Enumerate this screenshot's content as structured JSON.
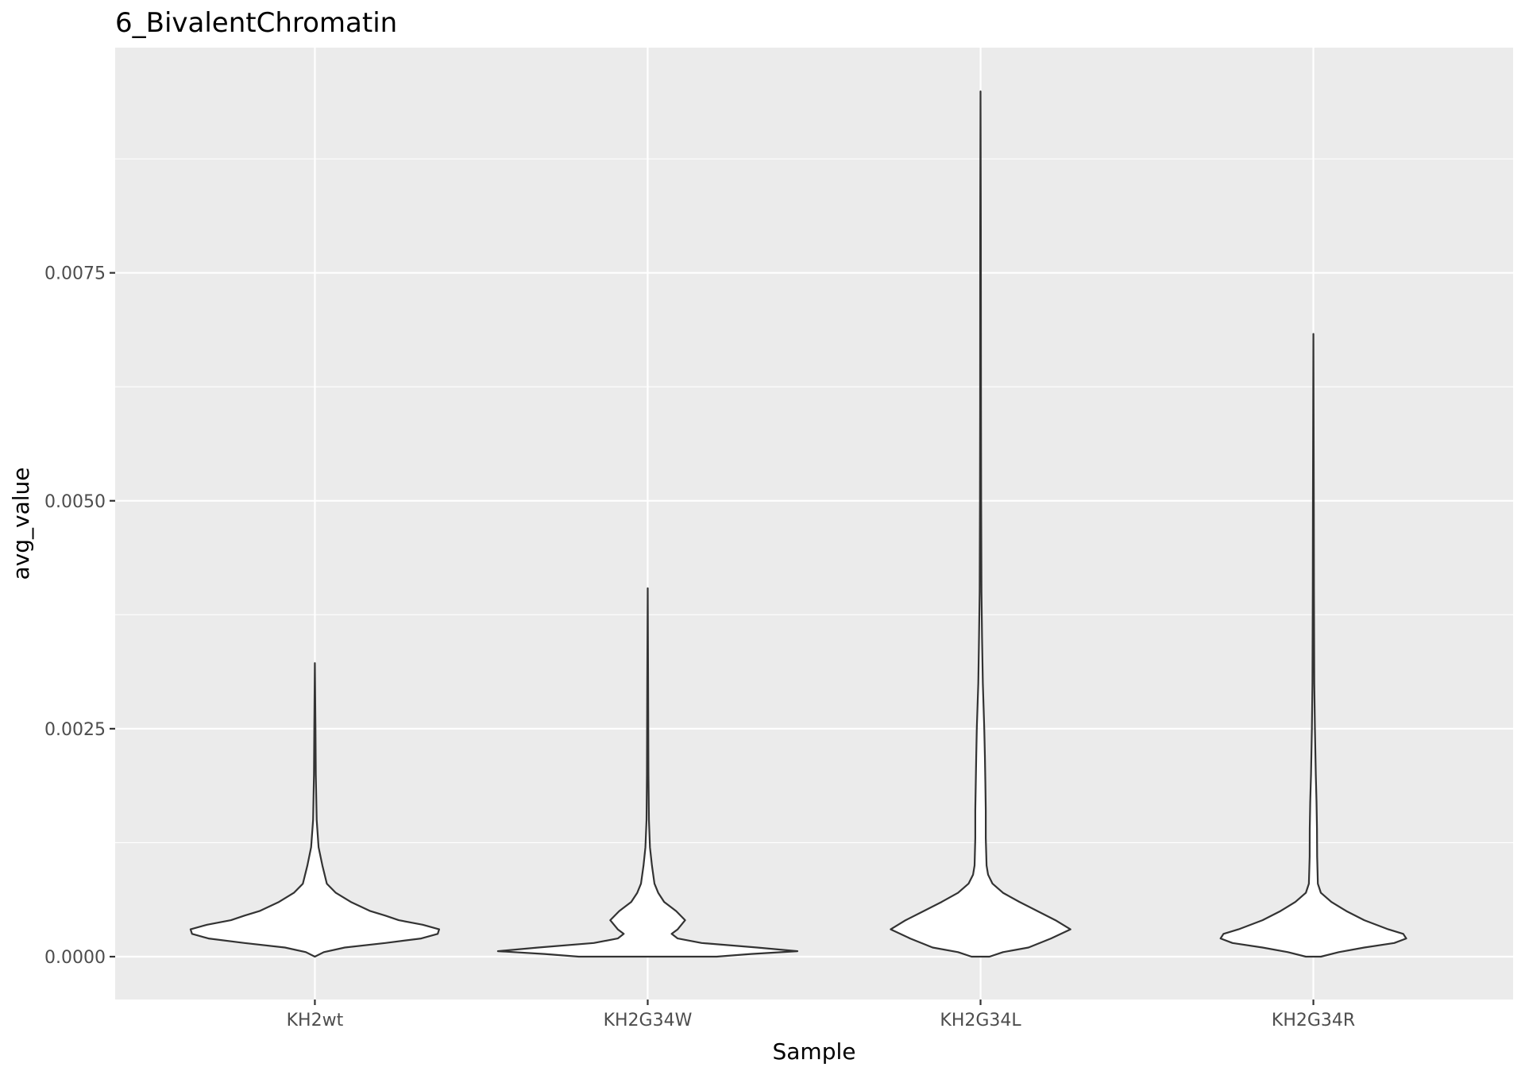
{
  "chart_data": {
    "type": "violin",
    "title": "6_BivalentChromatin",
    "xlabel": "Sample",
    "ylabel": "avg_value",
    "categories": [
      "KH2wt",
      "KH2G34W",
      "KH2G34L",
      "KH2G34R"
    ],
    "ylim": [
      -0.00047,
      0.00997
    ],
    "yticks": [
      0.0,
      0.0025,
      0.005,
      0.0075
    ],
    "ytick_labels": [
      "0.0000",
      "0.0025",
      "0.0050",
      "0.0075"
    ],
    "grid": true,
    "legend": "none",
    "colors": {
      "panel": "#ebebeb",
      "grid": "#ffffff",
      "violin_fill": "#ffffff",
      "violin_outline": "#333333"
    },
    "violins": [
      {
        "name": "KH2wt",
        "min": 0.0,
        "max": 0.00322,
        "profile": [
          [
            0.0,
            0.0
          ],
          [
            5e-05,
            0.06
          ],
          [
            0.0001,
            0.2
          ],
          [
            0.00015,
            0.47
          ],
          [
            0.0002,
            0.71
          ],
          [
            0.00025,
            0.82
          ],
          [
            0.0003,
            0.83
          ],
          [
            0.00035,
            0.72
          ],
          [
            0.0004,
            0.56
          ],
          [
            0.00045,
            0.47
          ],
          [
            0.0005,
            0.37
          ],
          [
            0.0006,
            0.24
          ],
          [
            0.0007,
            0.14
          ],
          [
            0.0008,
            0.08
          ],
          [
            0.001,
            0.05
          ],
          [
            0.0012,
            0.025
          ],
          [
            0.0015,
            0.012
          ],
          [
            0.002,
            0.006
          ],
          [
            0.0025,
            0.004
          ],
          [
            0.00322,
            0.0
          ]
        ]
      },
      {
        "name": "KH2G34W",
        "min": 0.0,
        "max": 0.00404,
        "profile": [
          [
            0.0,
            0.46
          ],
          [
            3e-05,
            0.69
          ],
          [
            6e-05,
            1.0
          ],
          [
            0.0001,
            0.73
          ],
          [
            0.00015,
            0.36
          ],
          [
            0.0002,
            0.2
          ],
          [
            0.00025,
            0.16
          ],
          [
            0.0003,
            0.2
          ],
          [
            0.0004,
            0.25
          ],
          [
            0.0005,
            0.19
          ],
          [
            0.0006,
            0.11
          ],
          [
            0.0007,
            0.07
          ],
          [
            0.0008,
            0.045
          ],
          [
            0.001,
            0.028
          ],
          [
            0.0012,
            0.015
          ],
          [
            0.0015,
            0.008
          ],
          [
            0.002,
            0.005
          ],
          [
            0.003,
            0.003
          ],
          [
            0.00404,
            0.0
          ]
        ]
      },
      {
        "name": "KH2G34L",
        "min": 0.0,
        "max": 0.00949,
        "profile": [
          [
            0.0,
            0.06
          ],
          [
            5e-05,
            0.15
          ],
          [
            0.0001,
            0.32
          ],
          [
            0.0002,
            0.47
          ],
          [
            0.0003,
            0.6
          ],
          [
            0.0004,
            0.5
          ],
          [
            0.0005,
            0.38
          ],
          [
            0.0006,
            0.26
          ],
          [
            0.0007,
            0.15
          ],
          [
            0.0008,
            0.08
          ],
          [
            0.0009,
            0.05
          ],
          [
            0.001,
            0.04
          ],
          [
            0.0013,
            0.035
          ],
          [
            0.0016,
            0.035
          ],
          [
            0.0019,
            0.032
          ],
          [
            0.0022,
            0.029
          ],
          [
            0.0025,
            0.025
          ],
          [
            0.003,
            0.015
          ],
          [
            0.0035,
            0.01
          ],
          [
            0.004,
            0.006
          ],
          [
            0.005,
            0.004
          ],
          [
            0.006,
            0.003
          ],
          [
            0.008,
            0.002
          ],
          [
            0.00949,
            0.0
          ]
        ]
      },
      {
        "name": "KH2G34R",
        "min": 0.0,
        "max": 0.00683,
        "profile": [
          [
            0.0,
            0.05
          ],
          [
            5e-05,
            0.17
          ],
          [
            0.0001,
            0.34
          ],
          [
            0.00015,
            0.54
          ],
          [
            0.0002,
            0.62
          ],
          [
            0.00025,
            0.6
          ],
          [
            0.0003,
            0.5
          ],
          [
            0.0004,
            0.34
          ],
          [
            0.0005,
            0.22
          ],
          [
            0.0006,
            0.12
          ],
          [
            0.0007,
            0.05
          ],
          [
            0.0008,
            0.03
          ],
          [
            0.0011,
            0.025
          ],
          [
            0.0014,
            0.024
          ],
          [
            0.0017,
            0.021
          ],
          [
            0.002,
            0.016
          ],
          [
            0.0025,
            0.01
          ],
          [
            0.003,
            0.006
          ],
          [
            0.004,
            0.004
          ],
          [
            0.005,
            0.003
          ],
          [
            0.00683,
            0.0
          ]
        ]
      }
    ]
  }
}
